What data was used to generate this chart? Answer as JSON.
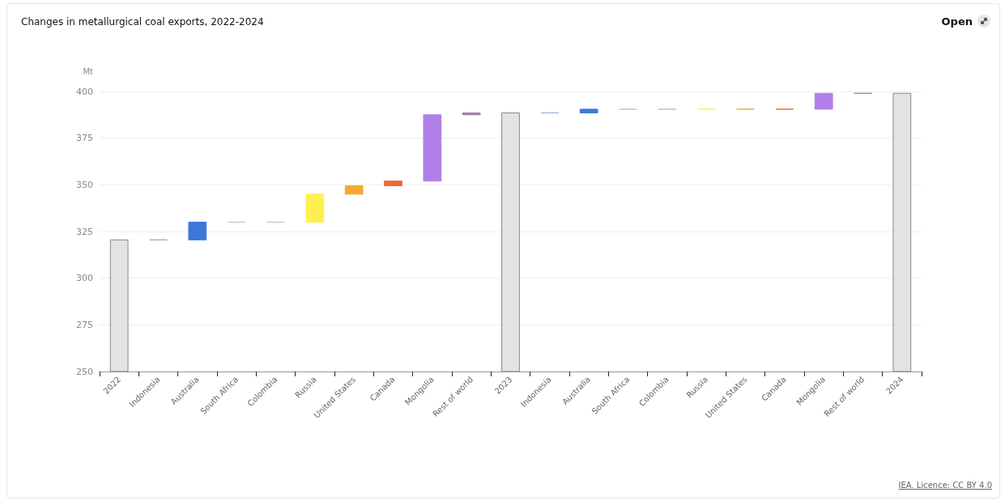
{
  "chart_data": {
    "type": "bar",
    "title": "Changes in metallurgical coal exports, 2022-2024",
    "ylabel": "Mt",
    "categories": [
      "2022",
      "Indonesia",
      "Australia",
      "South Africa",
      "Colombia",
      "Russia",
      "United States",
      "Canada",
      "Mongolia",
      "Rest of world",
      "2023",
      "Indonesia",
      "Australia",
      "South Africa",
      "Colombia",
      "Russia",
      "United States",
      "Canada",
      "Mongolia",
      "Rest of world",
      "2024"
    ],
    "values": [
      320.5,
      0,
      9.5,
      0,
      0,
      15,
      4.5,
      2.5,
      35.5,
      1,
      388.5,
      0,
      2,
      0,
      0,
      0,
      0,
      0,
      8.5,
      0,
      399
    ],
    "base": [
      null,
      320.5,
      320.5,
      330,
      330,
      330,
      345,
      349.5,
      352,
      387.5,
      null,
      388.5,
      388.5,
      390.5,
      390.5,
      390.5,
      390.5,
      390.5,
      390.5,
      399,
      null
    ],
    "colors": [
      "#e3e3e3",
      "#8fa8c8",
      "#3c78d8",
      "#c0c0c0",
      "#c0c0c0",
      "#fff04f",
      "#f7a830",
      "#f0683a",
      "#b07fe8",
      "#a07fa8",
      "#e3e3e3",
      "#8fa8c8",
      "#3c78d8",
      "#c0c0c0",
      "#c0c0c0",
      "#fff04f",
      "#f7a830",
      "#f0683a",
      "#b07fe8",
      "#a07fa8",
      "#e3e3e3"
    ],
    "ylim": [
      250,
      400
    ],
    "yticks": [
      250,
      275,
      300,
      325,
      350,
      375,
      400
    ],
    "grid": "y",
    "annotations": [
      "Open",
      "IEA. Licence: CC BY 4.0"
    ]
  }
}
